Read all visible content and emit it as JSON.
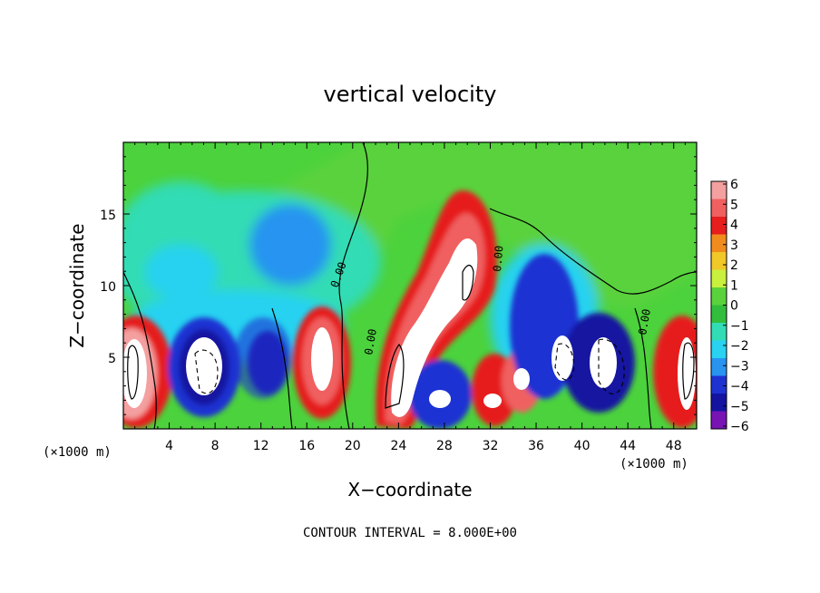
{
  "chart_data": {
    "type": "heatmap",
    "title": "vertical velocity",
    "xlabel": "X−coordinate",
    "ylabel": "Z−coordinate",
    "x_unit": "(×1000 m)",
    "y_unit": "(×1000 m)",
    "xlim": [
      0,
      50
    ],
    "ylim": [
      0,
      20
    ],
    "x_ticks": [
      4,
      8,
      12,
      16,
      20,
      24,
      28,
      32,
      36,
      40,
      44,
      48
    ],
    "y_ticks": [
      5,
      10,
      15
    ],
    "colorbar": {
      "ticks": [
        6,
        5,
        4,
        3,
        2,
        1,
        0,
        -1,
        -2,
        -3,
        -4,
        -5,
        -6
      ],
      "colors": [
        "#f4a0a0",
        "#f06060",
        "#e61e1e",
        "#f08c1e",
        "#f0c828",
        "#c8f03c",
        "#5ad23c",
        "#32be3c",
        "#32dcb4",
        "#28d2f0",
        "#2894f0",
        "#1e32d2",
        "#1414a0",
        "#7814b4"
      ],
      "min": -6,
      "max": 6
    },
    "contour_interval": "CONTOUR INTERVAL = 8.000E+00",
    "contour_labels": [
      "0.00",
      "0.00",
      "0.00",
      "0.00"
    ],
    "grid": false,
    "legend": "right colorbar"
  },
  "colors": {
    "background": "#ffffff",
    "text": "#000000",
    "positive_core": "#ffffff",
    "axis": "#000000"
  }
}
